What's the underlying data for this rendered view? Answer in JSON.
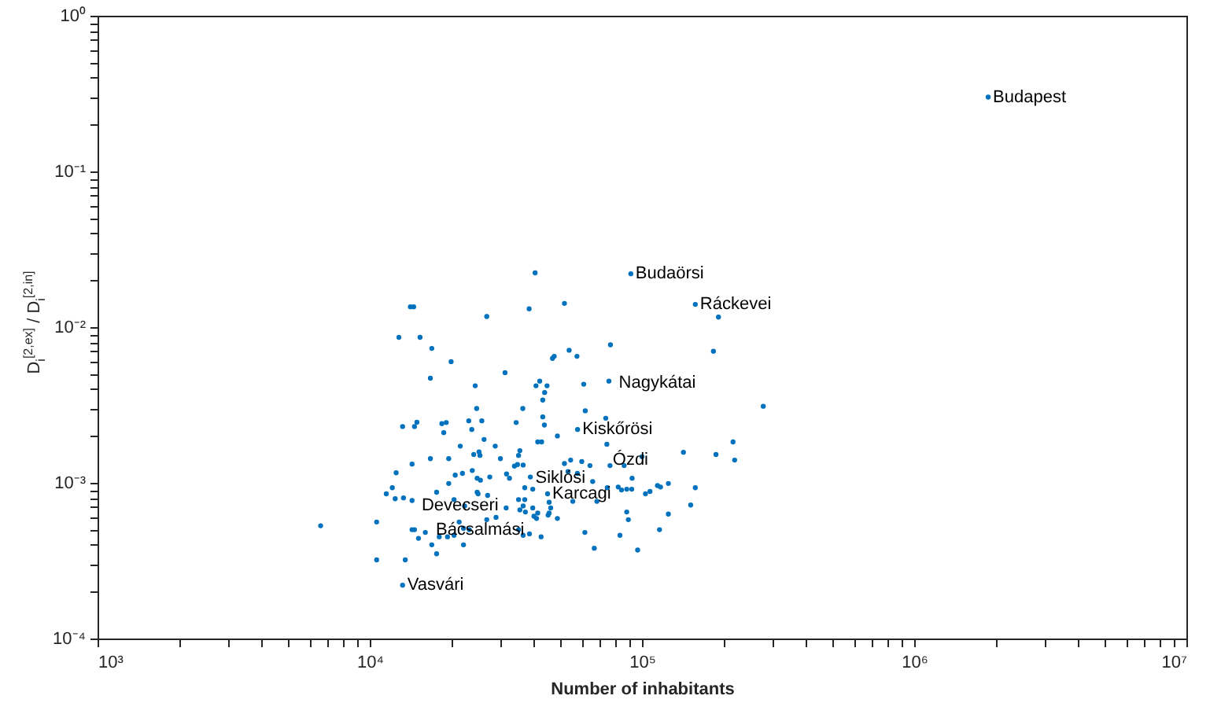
{
  "chart_data": {
    "type": "scatter",
    "xlabel": "Number of inhabitants",
    "ylabel": "D$_{i}$$^{[2,ex]}$ / D$_{i}$$^{[2,in]}$",
    "log": "xy",
    "grid": false,
    "marker": "circle",
    "color": "#0072bd",
    "xlim": [
      1000,
      10000000
    ],
    "ylim": [
      0.0001,
      1
    ],
    "xticks": [
      {
        "value": 1000,
        "label": "10³"
      },
      {
        "value": 2000,
        "label": null
      },
      {
        "value": 3000,
        "label": null
      },
      {
        "value": 4000,
        "label": null
      },
      {
        "value": 5000,
        "label": null
      },
      {
        "value": 6000,
        "label": null
      },
      {
        "value": 7000,
        "label": null
      },
      {
        "value": 8000,
        "label": null
      },
      {
        "value": 9000,
        "label": null
      },
      {
        "value": 10000,
        "label": "10⁴"
      },
      {
        "value": 20000,
        "label": null
      },
      {
        "value": 30000,
        "label": null
      },
      {
        "value": 40000,
        "label": null
      },
      {
        "value": 50000,
        "label": null
      },
      {
        "value": 60000,
        "label": null
      },
      {
        "value": 70000,
        "label": null
      },
      {
        "value": 80000,
        "label": null
      },
      {
        "value": 90000,
        "label": null
      },
      {
        "value": 100000,
        "label": "10⁵"
      },
      {
        "value": 200000,
        "label": null
      },
      {
        "value": 300000,
        "label": null
      },
      {
        "value": 400000,
        "label": null
      },
      {
        "value": 500000,
        "label": null
      },
      {
        "value": 600000,
        "label": null
      },
      {
        "value": 700000,
        "label": null
      },
      {
        "value": 800000,
        "label": null
      },
      {
        "value": 900000,
        "label": null
      },
      {
        "value": 1000000,
        "label": "10⁶"
      },
      {
        "value": 2000000,
        "label": null
      },
      {
        "value": 3000000,
        "label": null
      },
      {
        "value": 4000000,
        "label": null
      },
      {
        "value": 5000000,
        "label": null
      },
      {
        "value": 6000000,
        "label": null
      },
      {
        "value": 7000000,
        "label": null
      },
      {
        "value": 8000000,
        "label": null
      },
      {
        "value": 9000000,
        "label": null
      },
      {
        "value": 10000000,
        "label": "10⁷"
      }
    ],
    "yticks": [
      {
        "value": 0.0001,
        "label": "10⁻⁴"
      },
      {
        "value": 0.0002,
        "label": null
      },
      {
        "value": 0.0003,
        "label": null
      },
      {
        "value": 0.0004,
        "label": null
      },
      {
        "value": 0.0005,
        "label": null
      },
      {
        "value": 0.0006,
        "label": null
      },
      {
        "value": 0.0007,
        "label": null
      },
      {
        "value": 0.0008,
        "label": null
      },
      {
        "value": 0.0009,
        "label": null
      },
      {
        "value": 0.001,
        "label": "10⁻³"
      },
      {
        "value": 0.002,
        "label": null
      },
      {
        "value": 0.003,
        "label": null
      },
      {
        "value": 0.004,
        "label": null
      },
      {
        "value": 0.005,
        "label": null
      },
      {
        "value": 0.006,
        "label": null
      },
      {
        "value": 0.007,
        "label": null
      },
      {
        "value": 0.008,
        "label": null
      },
      {
        "value": 0.009,
        "label": null
      },
      {
        "value": 0.01,
        "label": "10⁻²"
      },
      {
        "value": 0.02,
        "label": null
      },
      {
        "value": 0.03,
        "label": null
      },
      {
        "value": 0.04,
        "label": null
      },
      {
        "value": 0.05,
        "label": null
      },
      {
        "value": 0.06,
        "label": null
      },
      {
        "value": 0.07,
        "label": null
      },
      {
        "value": 0.08,
        "label": null
      },
      {
        "value": 0.09,
        "label": null
      },
      {
        "value": 0.1,
        "label": "10⁻¹"
      },
      {
        "value": 0.2,
        "label": null
      },
      {
        "value": 0.3,
        "label": null
      },
      {
        "value": 0.4,
        "label": null
      },
      {
        "value": 0.5,
        "label": null
      },
      {
        "value": 0.6,
        "label": null
      },
      {
        "value": 0.7,
        "label": null
      },
      {
        "value": 0.8,
        "label": null
      },
      {
        "value": 0.9,
        "label": null
      },
      {
        "value": 1,
        "label": "10⁰"
      }
    ],
    "x": [
      40500,
      14100,
      14500,
      38500,
      51900,
      26900,
      12800,
      15300,
      16900,
      19900,
      46900,
      47600,
      31400,
      16700,
      24400,
      42100,
      40800,
      44800,
      43900,
      43200,
      24700,
      36500,
      43200,
      43800,
      25800,
      23100,
      34500,
      19100,
      18400,
      14900,
      14600,
      13200,
      191000,
      183000,
      76600,
      54000,
      57700,
      61100,
      75600,
      279000,
      61900,
      73600,
      48900,
      41400,
      42800,
      74300,
      142000,
      187000,
      216000,
      219000,
      100000,
      51900,
      54700,
      60100,
      64400,
      57900,
      53500,
      76300,
      86000,
      92000,
      65900,
      81800,
      74600,
      84100,
      87900,
      91700,
      103000,
      107000,
      114000,
      117000,
      125000,
      157000,
      151000,
      68300,
      55700,
      45600,
      46200,
      45600,
      45200,
      41400,
      41000,
      48900,
      87900,
      89100,
      125000,
      116000,
      61700,
      83000,
      42600,
      66800,
      96400,
      18700,
      23700,
      26300,
      21500,
      28900,
      24100,
      25200,
      25400,
      35600,
      35200,
      30200,
      19500,
      16700,
      14300,
      23800,
      21900,
      20600,
      34000,
      34900,
      36600,
      31800,
      24800,
      25500,
      27600,
      32600,
      38900,
      12500,
      12100,
      11500,
      19500,
      17600,
      24800,
      25000,
      27100,
      37100,
      39700,
      12400,
      13300,
      14300,
      20400,
      22300,
      31700,
      35200,
      37100,
      36600,
      35600,
      39700,
      29100,
      26900,
      21300,
      37300,
      40100,
      6600,
      10600,
      14300,
      14600,
      16000,
      15100,
      20400,
      22100,
      23200,
      22100,
      19300,
      18000,
      16900,
      17600,
      35200,
      36600,
      38600,
      13500,
      10600,
      13200,
      1870000,
      58000,
      91000,
      157000,
      45000
    ],
    "values": [
      0.0223,
      0.0135,
      0.0135,
      0.0131,
      0.0142,
      0.0117,
      0.0086,
      0.0086,
      0.0073,
      0.006,
      0.0063,
      0.0065,
      0.0051,
      0.0047,
      0.0042,
      0.0045,
      0.0042,
      0.0042,
      0.0038,
      0.0034,
      0.003,
      0.003,
      0.00265,
      0.00235,
      0.0025,
      0.0025,
      0.00244,
      0.00244,
      0.0024,
      0.00245,
      0.0023,
      0.0023,
      0.0116,
      0.007,
      0.0077,
      0.0071,
      0.0065,
      0.0043,
      0.0045,
      0.0031,
      0.0029,
      0.0026,
      0.002,
      0.00183,
      0.00183,
      0.00177,
      0.00157,
      0.00152,
      0.00183,
      0.0014,
      0.00147,
      0.00133,
      0.0014,
      0.00137,
      0.00129,
      0.00115,
      0.00118,
      0.00129,
      0.00129,
      0.00107,
      0.00102,
      0.00094,
      0.00093,
      0.0009,
      0.00091,
      0.00091,
      0.00085,
      0.00088,
      0.00096,
      0.00094,
      0.00099,
      0.00093,
      0.00072,
      0.00076,
      0.00076,
      0.00075,
      0.00069,
      0.00064,
      0.00062,
      0.00064,
      0.00059,
      0.00059,
      0.00065,
      0.00058,
      0.00063,
      0.0005,
      0.00048,
      0.00046,
      0.00045,
      0.00038,
      0.00037,
      0.0021,
      0.0022,
      0.0019,
      0.00172,
      0.00172,
      0.00152,
      0.00158,
      0.0015,
      0.00161,
      0.0015,
      0.00143,
      0.00143,
      0.00143,
      0.00132,
      0.0012,
      0.00115,
      0.00112,
      0.00128,
      0.00131,
      0.0013,
      0.00114,
      0.00107,
      0.00104,
      0.00109,
      0.00107,
      0.00109,
      0.00116,
      0.00093,
      0.00085,
      0.00099,
      0.00087,
      0.00087,
      0.00085,
      0.00083,
      0.00093,
      0.00091,
      0.00079,
      0.0008,
      0.00077,
      0.00078,
      0.00071,
      0.00069,
      0.00078,
      0.00078,
      0.00071,
      0.00067,
      0.00069,
      0.0006,
      0.00058,
      0.00056,
      0.00065,
      0.00061,
      0.00053,
      0.00056,
      0.0005,
      0.0005,
      0.00048,
      0.00044,
      0.00046,
      0.00051,
      0.0005,
      0.0004,
      0.00045,
      0.00045,
      0.0004,
      0.00035,
      0.0005,
      0.00046,
      0.00047,
      0.00032,
      0.00032,
      0.00022,
      0.3,
      0.0022,
      0.022,
      0.014,
      0.00085
    ],
    "annotations": [
      {
        "text": "Budapest",
        "x": 1870000,
        "y": 0.3
      },
      {
        "text": "Budaörsi",
        "x": 91000,
        "y": 0.022
      },
      {
        "text": "Ráckevei",
        "x": 157000,
        "y": 0.014
      },
      {
        "text": "Nagykátai",
        "x": 79000,
        "y": 0.0044
      },
      {
        "text": "Kiskőrösi",
        "x": 58000,
        "y": 0.0022
      },
      {
        "text": "Ózdi",
        "x": 75000,
        "y": 0.0014
      },
      {
        "text": "Siklósi",
        "x": 39000,
        "y": 0.00107
      },
      {
        "text": "Karcagi",
        "x": 45000,
        "y": 0.00085
      },
      {
        "text": "Devecseri",
        "x": 14900,
        "y": 0.00071
      },
      {
        "text": "Bácsalmási",
        "x": 16800,
        "y": 0.0005
      },
      {
        "text": "Vasvári",
        "x": 13200,
        "y": 0.00022
      }
    ]
  }
}
